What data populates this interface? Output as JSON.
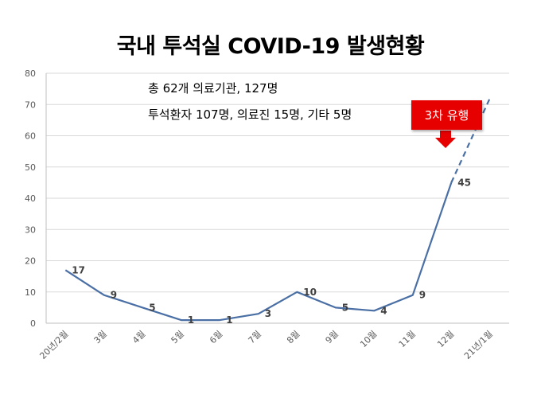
{
  "chart_data": {
    "type": "line",
    "title": "국내 투석실 COVID-19 발생현황",
    "categories": [
      "20년/2월",
      "3월",
      "4월",
      "5월",
      "6월",
      "7월",
      "8월",
      "9월",
      "10월",
      "11월",
      "12월",
      "21년/1월"
    ],
    "values": [
      17,
      9,
      5,
      1,
      1,
      3,
      10,
      5,
      4,
      9,
      45,
      null
    ],
    "projection": {
      "from_category": "12월",
      "to_category": "21년/1월",
      "from_value": 45,
      "to_value": 72,
      "style": "dashed"
    },
    "ylim": [
      0,
      80
    ],
    "yticks": [
      0,
      10,
      20,
      30,
      40,
      50,
      60,
      70,
      80
    ],
    "grid": true,
    "line_color": "#4a6fa5"
  },
  "annotations": {
    "line1": "총 62개 의료기관, 127명",
    "line2": "투석환자 107명, 의료진 15명, 기타 5명",
    "callout": "3차 유행",
    "callout_color": "#e60000"
  }
}
